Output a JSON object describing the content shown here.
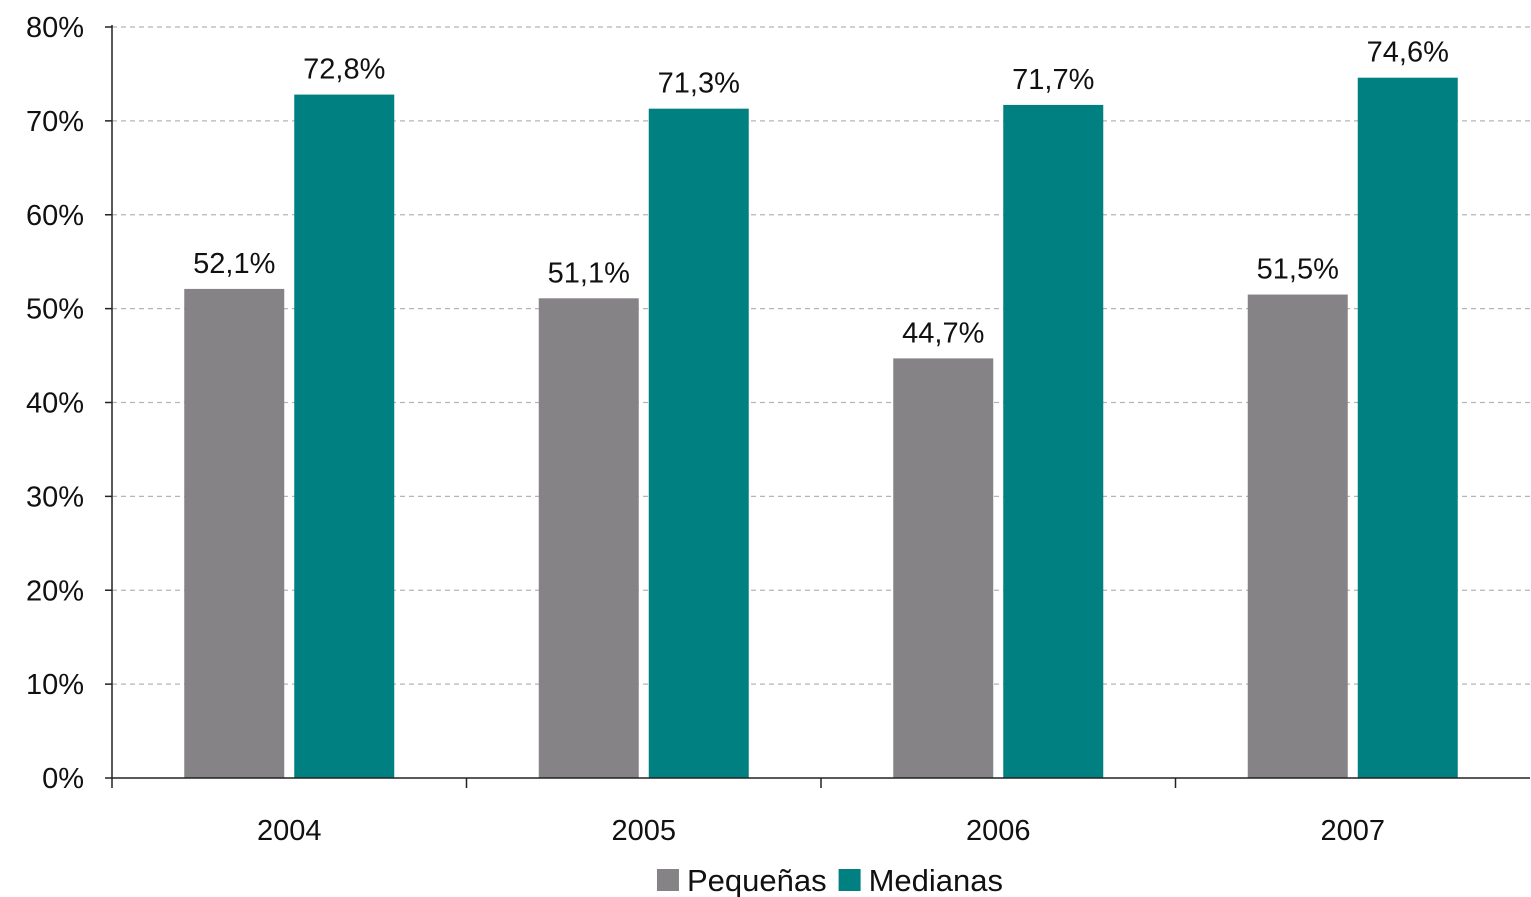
{
  "chart_data": {
    "type": "bar",
    "title": "",
    "xlabel": "",
    "ylabel": "",
    "categories": [
      "2004",
      "2005",
      "2006",
      "2007"
    ],
    "series": [
      {
        "name": "Pequeñas",
        "color": "#858385",
        "values": [
          52.1,
          51.1,
          44.7,
          51.5
        ],
        "labels": [
          "52,1%",
          "51,1%",
          "44,7%",
          "51,5%"
        ]
      },
      {
        "name": "Medianas",
        "color": "#008080",
        "values": [
          72.8,
          71.3,
          71.7,
          74.6
        ],
        "labels": [
          "72,8%",
          "71,3%",
          "71,7%",
          "74,6%"
        ]
      }
    ],
    "ylim": [
      0,
      80
    ],
    "yticks": [
      0,
      10,
      20,
      30,
      40,
      50,
      60,
      70,
      80
    ],
    "ytick_labels": [
      "0%",
      "10%",
      "20%",
      "30%",
      "40%",
      "50%",
      "60%",
      "70%",
      "80%"
    ],
    "grid": "horizontal dashed",
    "legend": "bottom-center"
  }
}
